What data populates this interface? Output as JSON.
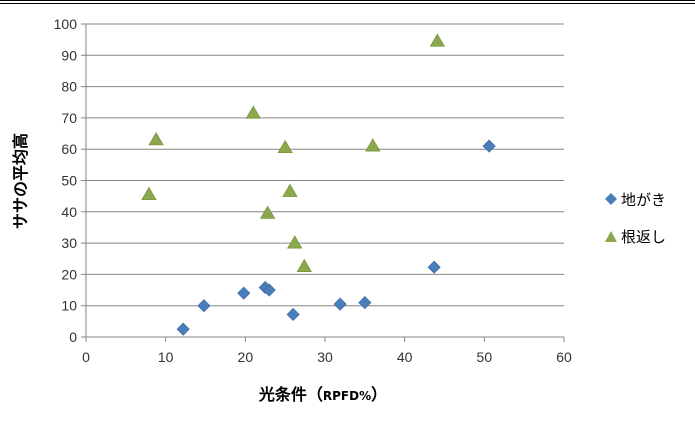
{
  "chart_data": {
    "type": "scatter",
    "title": "",
    "xlabel": "光条件",
    "xlabel_paren_open": "（",
    "xlabel_unit": "RPFD%",
    "xlabel_paren_close": "）",
    "ylabel": "ササの平均高",
    "xlim": [
      0,
      60
    ],
    "ylim": [
      0,
      100
    ],
    "x_ticks": [
      0,
      10,
      20,
      30,
      40,
      50,
      60
    ],
    "y_ticks": [
      0,
      10,
      20,
      30,
      40,
      50,
      60,
      70,
      80,
      90,
      100
    ],
    "grid": "horizontal",
    "legend_position": "right",
    "series": [
      {
        "name": "地がき",
        "marker": "diamond",
        "color": "#4a7ebb",
        "points": [
          {
            "x": 12.2,
            "y": 2.5
          },
          {
            "x": 14.8,
            "y": 10
          },
          {
            "x": 19.8,
            "y": 14
          },
          {
            "x": 22.5,
            "y": 15.8
          },
          {
            "x": 23.0,
            "y": 15
          },
          {
            "x": 26.0,
            "y": 7.2
          },
          {
            "x": 31.9,
            "y": 10.5
          },
          {
            "x": 35.0,
            "y": 11
          },
          {
            "x": 43.7,
            "y": 22.3
          },
          {
            "x": 50.6,
            "y": 61
          }
        ]
      },
      {
        "name": "根返し",
        "marker": "triangle",
        "color": "#8ca84c",
        "points": [
          {
            "x": 7.9,
            "y": 45.5
          },
          {
            "x": 8.8,
            "y": 63
          },
          {
            "x": 21.0,
            "y": 71.5
          },
          {
            "x": 22.8,
            "y": 39.5
          },
          {
            "x": 25.0,
            "y": 60.5
          },
          {
            "x": 25.6,
            "y": 46.5
          },
          {
            "x": 26.2,
            "y": 30
          },
          {
            "x": 27.4,
            "y": 22.5
          },
          {
            "x": 36.0,
            "y": 61
          },
          {
            "x": 44.1,
            "y": 94.5
          }
        ]
      }
    ]
  }
}
